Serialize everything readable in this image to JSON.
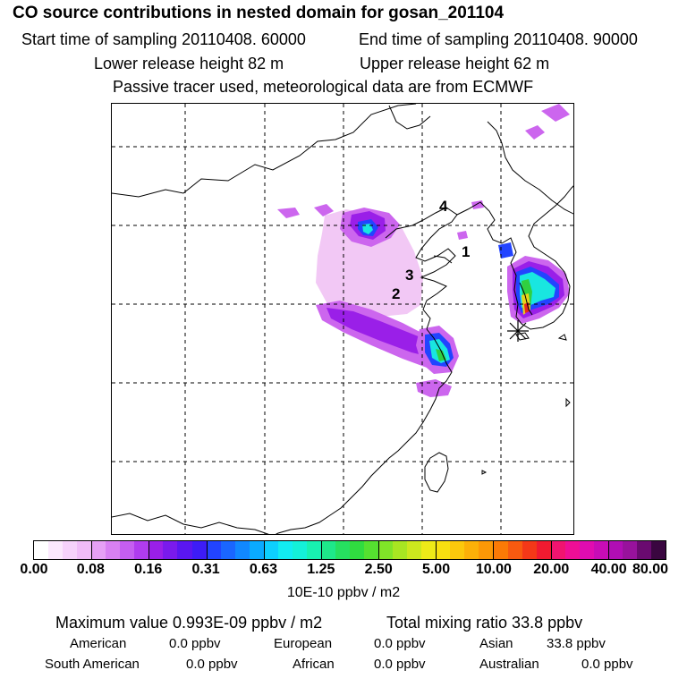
{
  "title": "CO  source contributions in nested domain for gosan_201104",
  "sampling": {
    "start": "Start time of sampling 20110408. 60000",
    "end": "End time of sampling 20110408. 90000"
  },
  "release": {
    "lower": "Lower release height   82 m",
    "upper": "Upper release height   62 m"
  },
  "tracer_note": "Passive tracer used, meteorological data are from ECMWF",
  "map": {
    "site_labels": [
      "1",
      "2",
      "3",
      "4"
    ],
    "colors": {
      "plume_light": "#f2c8f5",
      "plume_mid": "#cc66ee",
      "plume_violet": "#9a1fe8",
      "plume_blue": "#2244ff",
      "plume_cyan": "#19e6e0",
      "plume_green": "#30d040",
      "plume_yellow": "#e8d21a",
      "plume_red": "#e8261a"
    }
  },
  "colorbar": {
    "colors": [
      "#ffffff",
      "#fbe8fd",
      "#f6d2fb",
      "#f0bcf8",
      "#e6a0f5",
      "#d880f2",
      "#c55ef0",
      "#b03cee",
      "#9a1fe8",
      "#7a1aec",
      "#5a16f0",
      "#3d1cf6",
      "#2244ff",
      "#1a66ff",
      "#1188ff",
      "#0aaaff",
      "#0dd0ff",
      "#12ecf2",
      "#14f0d8",
      "#18f0b0",
      "#1ee88a",
      "#26e060",
      "#30dc40",
      "#55e030",
      "#80e428",
      "#a8e622",
      "#cce81e",
      "#eeea18",
      "#f8e010",
      "#fcc80c",
      "#fcb008",
      "#fc9806",
      "#fc7a06",
      "#f85a10",
      "#f43818",
      "#f01a30",
      "#f01470",
      "#ee0e96",
      "#e00cb0",
      "#c80cb6",
      "#b00eb4",
      "#98129c",
      "#6a0a70",
      "#3a0640"
    ],
    "ticks": [
      "0.00",
      "0.08",
      "0.16",
      "0.31",
      "0.63",
      "1.25",
      "2.50",
      "5.00",
      "10.00",
      "20.00",
      "40.00",
      "80.00"
    ],
    "unit": "10E-10 ppbv / m2"
  },
  "stats": {
    "maximum": "Maximum value  0.993E-09 ppbv / m2",
    "total": "Total mixing ratio      33.8 ppbv"
  },
  "contributions": [
    {
      "label": "American",
      "value": "0.0 ppbv"
    },
    {
      "label": "European",
      "value": "0.0 ppbv"
    },
    {
      "label": "Asian",
      "value": "33.8 ppbv"
    },
    {
      "label": "South American",
      "value": "0.0 ppbv"
    },
    {
      "label": "African",
      "value": "0.0 ppbv"
    },
    {
      "label": "Australian",
      "value": "0.0 ppbv"
    }
  ]
}
